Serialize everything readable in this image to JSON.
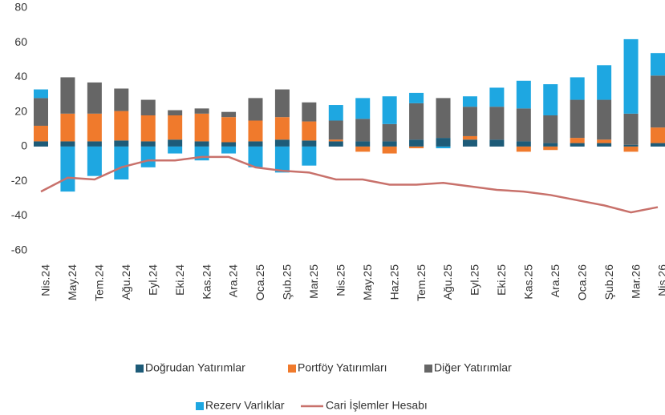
{
  "chart_data": {
    "type": "stacked-bar-line",
    "categories": [
      "Nis.24",
      "May.24",
      "Tem.24",
      "Ağu.24",
      "Eyl.24",
      "Eki.24",
      "Kas.24",
      "Ara.24",
      "Oca.25",
      "Şub.25",
      "Mar.25",
      "Nis.25",
      "May.25",
      "Haz.25",
      "Tem.25",
      "Ağu.25",
      "Eyl.25",
      "Eki.25",
      "Kas.25",
      "Ara.25",
      "Oca.26",
      "Şub.26",
      "Mar.26",
      "Nis.26"
    ],
    "series": [
      {
        "name": "Doğrudan Yatırımlar",
        "type": "bar",
        "color": "#1d5b78",
        "values": [
          3,
          3,
          3,
          3.5,
          3,
          4,
          3,
          2.5,
          3,
          4,
          3.5,
          3,
          3,
          3,
          4,
          5,
          4,
          4,
          3,
          2,
          2,
          2,
          1,
          2
        ]
      },
      {
        "name": "Portföy Yatırımları",
        "type": "bar",
        "color": "#f07a2c",
        "values": [
          9,
          16,
          16,
          17,
          15,
          14,
          16,
          14.5,
          12,
          13,
          11,
          1,
          -3,
          -4,
          -1,
          0,
          2,
          0,
          -3,
          -2,
          3,
          2,
          -3,
          9
        ]
      },
      {
        "name": "Diğer Yatırımlar",
        "type": "bar",
        "color": "#666666",
        "values": [
          16,
          21,
          18,
          13,
          9,
          3,
          3,
          3,
          13,
          16,
          11,
          11,
          13,
          10,
          21,
          23,
          17,
          19,
          19,
          16,
          22,
          23,
          18,
          30
        ]
      },
      {
        "name": "Rezerv Varlıklar",
        "type": "bar",
        "color": "#1ea7e1",
        "values": [
          5,
          -26,
          -17,
          -19,
          -12,
          -4,
          -8,
          -4,
          -12,
          -15,
          -11,
          9,
          12,
          16,
          6,
          -1,
          6,
          11,
          16,
          18,
          13,
          20,
          43,
          13
        ]
      },
      {
        "name": "Cari İşlemler Hesabı",
        "type": "line",
        "color": "#c8716b",
        "values": [
          -26,
          -18,
          -19,
          -12,
          -8,
          -8,
          -6,
          -6,
          -12,
          -14,
          -15,
          -19,
          -19,
          -22,
          -22,
          -21,
          -23,
          -25,
          -26,
          -28,
          -31,
          -34,
          -38,
          -35
        ]
      }
    ],
    "ylim": [
      -60,
      80
    ],
    "yticks": [
      -60,
      -40,
      -20,
      0,
      20,
      40,
      60,
      80
    ],
    "grid": false
  }
}
